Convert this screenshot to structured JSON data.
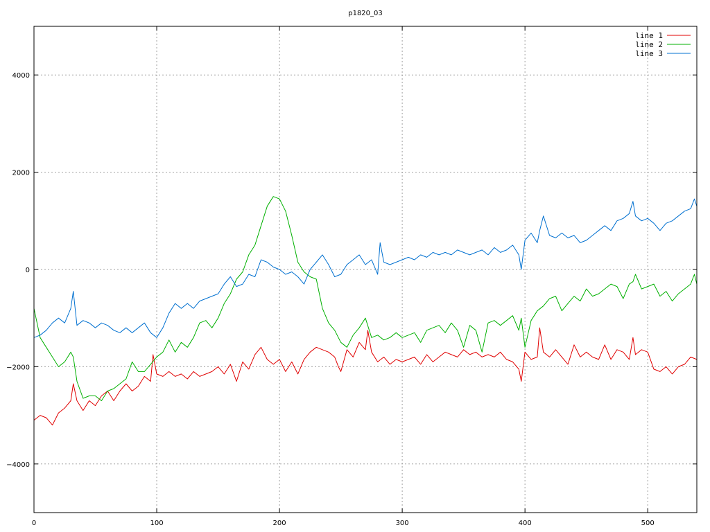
{
  "chart_data": {
    "type": "line",
    "title": "p1820_03",
    "xlabel": "",
    "ylabel": "",
    "xlim": [
      0,
      540
    ],
    "ylim": [
      -5000,
      5000
    ],
    "x_ticks": [
      0,
      100,
      200,
      300,
      400,
      500
    ],
    "y_ticks": [
      -4000,
      -2000,
      0,
      2000,
      4000
    ],
    "x_tick_labels": [
      "0",
      "100",
      "200",
      "300",
      "400",
      "500"
    ],
    "y_tick_labels": [
      "−4000",
      "−2000",
      "0",
      "2000",
      "4000"
    ],
    "grid": true,
    "legend": "top-right",
    "series": [
      {
        "name": "line 1",
        "color": "#e00000",
        "x": [
          0,
          5,
          10,
          15,
          20,
          25,
          30,
          32,
          35,
          40,
          45,
          50,
          55,
          60,
          65,
          70,
          75,
          80,
          85,
          90,
          95,
          97,
          100,
          105,
          110,
          115,
          120,
          125,
          130,
          135,
          140,
          145,
          150,
          155,
          160,
          165,
          170,
          175,
          180,
          185,
          190,
          195,
          200,
          205,
          210,
          215,
          220,
          225,
          230,
          235,
          240,
          245,
          248,
          250,
          255,
          260,
          265,
          270,
          272,
          275,
          280,
          285,
          290,
          295,
          300,
          305,
          310,
          315,
          320,
          325,
          330,
          335,
          340,
          345,
          350,
          355,
          360,
          365,
          370,
          375,
          380,
          385,
          390,
          395,
          397,
          400,
          405,
          410,
          412,
          415,
          420,
          425,
          430,
          435,
          440,
          445,
          450,
          455,
          460,
          465,
          470,
          475,
          480,
          485,
          488,
          490,
          495,
          500,
          505,
          510,
          515,
          520,
          525,
          530,
          535,
          540
        ],
        "y": [
          -3100,
          -3000,
          -3050,
          -3200,
          -2950,
          -2850,
          -2700,
          -2350,
          -2700,
          -2900,
          -2700,
          -2800,
          -2600,
          -2500,
          -2700,
          -2500,
          -2350,
          -2500,
          -2400,
          -2200,
          -2300,
          -1750,
          -2150,
          -2200,
          -2100,
          -2200,
          -2150,
          -2250,
          -2100,
          -2200,
          -2150,
          -2100,
          -2000,
          -2150,
          -1950,
          -2300,
          -1900,
          -2050,
          -1750,
          -1600,
          -1850,
          -1950,
          -1850,
          -2100,
          -1900,
          -2150,
          -1850,
          -1700,
          -1600,
          -1650,
          -1700,
          -1800,
          -2000,
          -2100,
          -1650,
          -1800,
          -1500,
          -1650,
          -1250,
          -1700,
          -1900,
          -1800,
          -1950,
          -1850,
          -1900,
          -1850,
          -1800,
          -1950,
          -1750,
          -1900,
          -1800,
          -1700,
          -1750,
          -1800,
          -1650,
          -1750,
          -1700,
          -1800,
          -1750,
          -1800,
          -1700,
          -1850,
          -1900,
          -2050,
          -2300,
          -1700,
          -1850,
          -1800,
          -1200,
          -1700,
          -1800,
          -1650,
          -1800,
          -1950,
          -1550,
          -1800,
          -1700,
          -1800,
          -1850,
          -1550,
          -1850,
          -1650,
          -1700,
          -1850,
          -1400,
          -1750,
          -1650,
          -1700,
          -2050,
          -2100,
          -2000,
          -2150,
          -2000,
          -1950,
          -1800,
          -1850
        ]
      },
      {
        "name": "line 2",
        "color": "#00b000",
        "x": [
          0,
          5,
          10,
          15,
          20,
          25,
          30,
          32,
          35,
          40,
          45,
          50,
          55,
          60,
          65,
          70,
          75,
          80,
          85,
          90,
          95,
          100,
          105,
          110,
          115,
          120,
          125,
          130,
          135,
          140,
          145,
          150,
          155,
          160,
          165,
          170,
          175,
          180,
          185,
          190,
          195,
          200,
          205,
          210,
          215,
          220,
          225,
          230,
          235,
          240,
          245,
          250,
          255,
          260,
          265,
          270,
          275,
          280,
          285,
          290,
          295,
          300,
          305,
          310,
          315,
          320,
          325,
          330,
          335,
          340,
          345,
          350,
          355,
          360,
          365,
          370,
          375,
          380,
          385,
          390,
          395,
          397,
          400,
          405,
          410,
          415,
          420,
          425,
          430,
          435,
          440,
          445,
          450,
          455,
          460,
          465,
          470,
          475,
          480,
          485,
          488,
          490,
          495,
          500,
          505,
          510,
          515,
          520,
          525,
          530,
          535,
          538,
          540
        ],
        "y": [
          -800,
          -1400,
          -1600,
          -1800,
          -2000,
          -1900,
          -1700,
          -1800,
          -2300,
          -2650,
          -2600,
          -2600,
          -2700,
          -2500,
          -2450,
          -2350,
          -2250,
          -1900,
          -2100,
          -2100,
          -1950,
          -1800,
          -1700,
          -1450,
          -1700,
          -1500,
          -1600,
          -1400,
          -1100,
          -1050,
          -1200,
          -1000,
          -700,
          -500,
          -200,
          -50,
          300,
          500,
          900,
          1300,
          1500,
          1450,
          1200,
          700,
          150,
          -50,
          -150,
          -200,
          -800,
          -1100,
          -1250,
          -1500,
          -1600,
          -1350,
          -1200,
          -1000,
          -1400,
          -1350,
          -1450,
          -1400,
          -1300,
          -1400,
          -1350,
          -1300,
          -1500,
          -1250,
          -1200,
          -1150,
          -1300,
          -1100,
          -1250,
          -1600,
          -1150,
          -1250,
          -1700,
          -1100,
          -1050,
          -1150,
          -1050,
          -950,
          -1250,
          -1000,
          -1600,
          -1050,
          -850,
          -750,
          -600,
          -550,
          -850,
          -700,
          -550,
          -650,
          -400,
          -550,
          -500,
          -400,
          -300,
          -350,
          -600,
          -300,
          -250,
          -100,
          -400,
          -350,
          -300,
          -550,
          -450,
          -650,
          -500,
          -400,
          -300,
          -100,
          -300
        ]
      },
      {
        "name": "line 3",
        "color": "#0070d0",
        "x": [
          0,
          5,
          10,
          15,
          20,
          25,
          30,
          32,
          35,
          40,
          45,
          50,
          55,
          60,
          65,
          70,
          75,
          80,
          85,
          90,
          95,
          100,
          105,
          110,
          115,
          120,
          125,
          130,
          135,
          140,
          145,
          150,
          155,
          160,
          165,
          170,
          175,
          180,
          185,
          190,
          195,
          200,
          205,
          210,
          215,
          220,
          225,
          230,
          235,
          240,
          245,
          250,
          255,
          260,
          265,
          270,
          275,
          280,
          282,
          285,
          290,
          295,
          300,
          305,
          310,
          315,
          320,
          325,
          330,
          335,
          340,
          345,
          350,
          355,
          360,
          365,
          370,
          375,
          380,
          385,
          390,
          395,
          397,
          400,
          405,
          410,
          412,
          415,
          420,
          425,
          430,
          435,
          440,
          445,
          450,
          455,
          460,
          465,
          470,
          475,
          480,
          485,
          488,
          490,
          495,
          500,
          505,
          510,
          515,
          520,
          525,
          530,
          535,
          538,
          540
        ],
        "y": [
          -1400,
          -1350,
          -1250,
          -1100,
          -1000,
          -1100,
          -800,
          -450,
          -1150,
          -1050,
          -1100,
          -1200,
          -1100,
          -1150,
          -1250,
          -1300,
          -1200,
          -1300,
          -1200,
          -1100,
          -1300,
          -1400,
          -1200,
          -900,
          -700,
          -800,
          -700,
          -800,
          -650,
          -600,
          -550,
          -500,
          -300,
          -150,
          -350,
          -300,
          -100,
          -150,
          200,
          150,
          50,
          0,
          -100,
          -50,
          -150,
          -300,
          0,
          150,
          300,
          100,
          -150,
          -100,
          100,
          200,
          300,
          100,
          200,
          -100,
          550,
          150,
          100,
          150,
          200,
          250,
          200,
          300,
          250,
          350,
          300,
          350,
          300,
          400,
          350,
          300,
          350,
          400,
          300,
          450,
          350,
          400,
          500,
          300,
          0,
          600,
          750,
          550,
          800,
          1100,
          700,
          650,
          750,
          650,
          700,
          550,
          600,
          700,
          800,
          900,
          800,
          1000,
          1050,
          1150,
          1400,
          1100,
          1000,
          1050,
          950,
          800,
          950,
          1000,
          1100,
          1200,
          1250,
          1450,
          1300
        ]
      }
    ]
  }
}
